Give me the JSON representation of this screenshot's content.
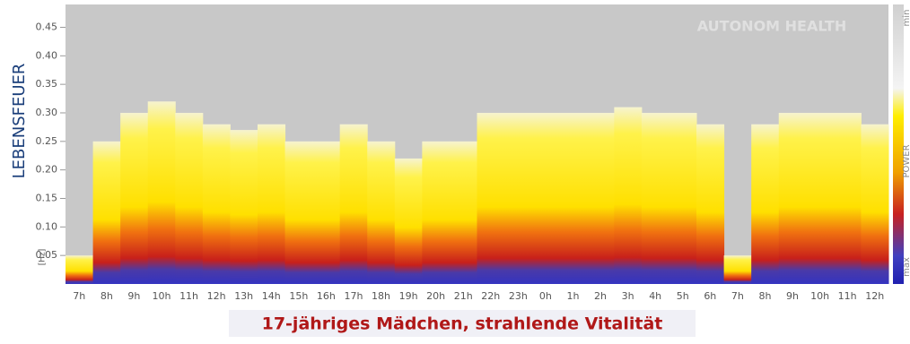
{
  "chart_data": {
    "type": "spectrogram",
    "y_label": "LEBENSFEUER",
    "y_unit": "[Hz]",
    "watermark": "AUTONOM HEALTH",
    "caption": "17-jähriges Mädchen, strahlende Vitalität",
    "colorbar": {
      "title": "POWER",
      "top": "min",
      "bottom": "max"
    },
    "categories": [
      "7h",
      "8h",
      "9h",
      "10h",
      "11h",
      "12h",
      "13h",
      "14h",
      "15h",
      "16h",
      "17h",
      "18h",
      "19h",
      "20h",
      "21h",
      "22h",
      "23h",
      "0h",
      "1h",
      "2h",
      "3h",
      "4h",
      "5h",
      "6h",
      "7h",
      "8h",
      "9h",
      "10h",
      "11h",
      "12h"
    ],
    "values": [
      0.05,
      0.25,
      0.3,
      0.32,
      0.3,
      0.28,
      0.27,
      0.28,
      0.25,
      0.25,
      0.28,
      0.25,
      0.22,
      0.25,
      0.25,
      0.3,
      0.3,
      0.3,
      0.3,
      0.3,
      0.31,
      0.3,
      0.3,
      0.28,
      0.05,
      0.28,
      0.3,
      0.3,
      0.3,
      0.28
    ],
    "ylim": [
      0,
      0.49
    ],
    "yticks": [
      0.05,
      {
        "value": 0.1,
        "label": "0.10"
      },
      0.15,
      {
        "value": 0.2,
        "label": "0.20"
      },
      0.25,
      {
        "value": 0.3,
        "label": "0.30"
      },
      0.35,
      {
        "value": 0.4,
        "label": "0.40"
      },
      0.45
    ]
  }
}
